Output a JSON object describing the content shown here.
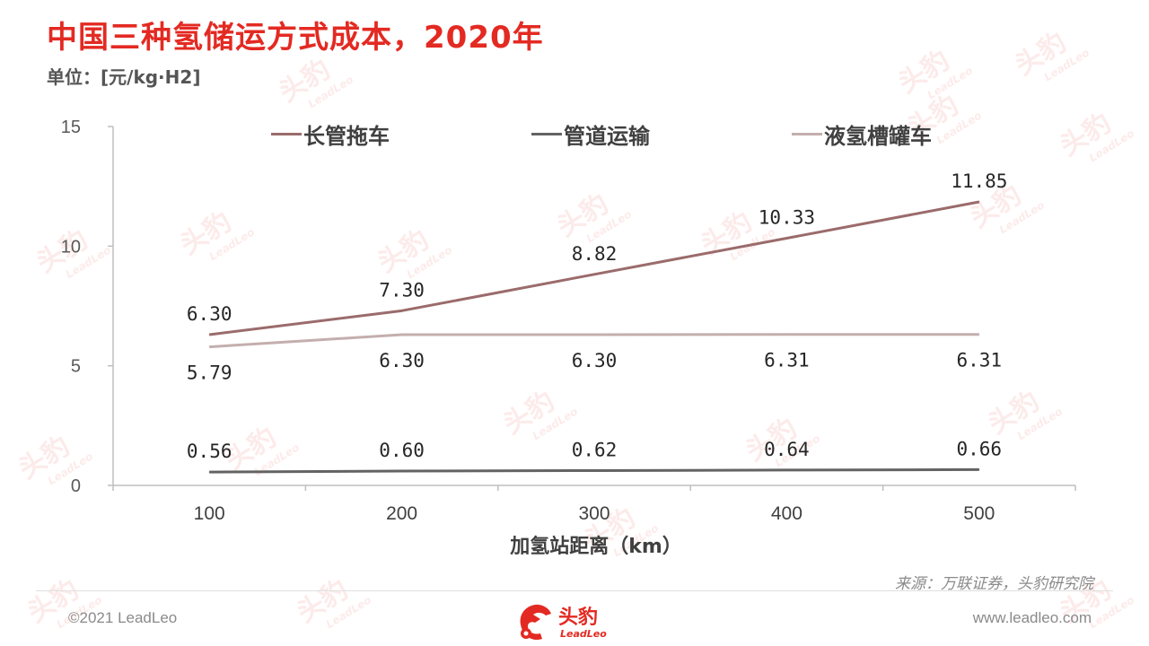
{
  "title": "中国三种氢储运方式成本，2020年",
  "unit_label": "单位：[元/kg·H2]",
  "chart_data": {
    "type": "line",
    "x": [
      100,
      200,
      300,
      400,
      500
    ],
    "categories": [
      "100",
      "200",
      "300",
      "400",
      "500"
    ],
    "xlabel": "加氢站距离（km）",
    "ylabel": "",
    "ylim": [
      0,
      15
    ],
    "yticks": [
      0,
      5,
      10,
      15
    ],
    "grid": false,
    "legend_placement": "top",
    "series": [
      {
        "name": "长管拖车",
        "color": "#9b6b6b",
        "values": [
          6.3,
          7.3,
          8.82,
          10.33,
          11.85
        ],
        "labels": [
          "6.30",
          "7.30",
          "8.82",
          "10.33",
          "11.85"
        ],
        "label_position": "above"
      },
      {
        "name": "管道运输",
        "color": "#636363",
        "values": [
          0.56,
          0.6,
          0.62,
          0.64,
          0.66
        ],
        "labels": [
          "0.56",
          "0.60",
          "0.62",
          "0.64",
          "0.66"
        ],
        "label_position": "above"
      },
      {
        "name": "液氢槽罐车",
        "color": "#c4aeae",
        "values": [
          5.79,
          6.3,
          6.3,
          6.31,
          6.31
        ],
        "labels": [
          "5.79",
          "6.30",
          "6.30",
          "6.31",
          "6.31"
        ],
        "label_position": "below"
      }
    ]
  },
  "source": "来源：万联证券，头豹研究院",
  "footer": {
    "copyright": "©2021 LeadLeo",
    "website": "www.leadleo.com",
    "logo_text": "头豹",
    "logo_sub": "LeadLeo"
  },
  "watermark": {
    "text": "头豹",
    "sub": "LeadLeo"
  },
  "colors": {
    "accent": "#e32a22",
    "axis": "#bfbfbf",
    "text": "#404040"
  }
}
